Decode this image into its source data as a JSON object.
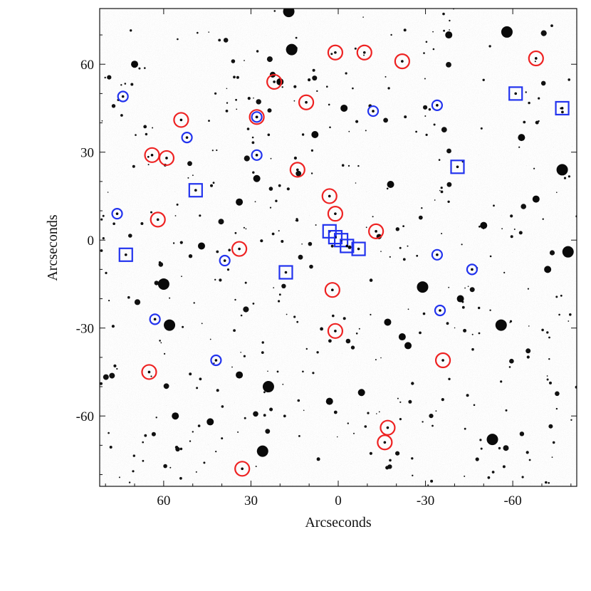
{
  "chart_data": {
    "type": "scatter",
    "title": "",
    "xlabel": "Arcseconds",
    "ylabel": "Arcseconds",
    "xlim": [
      82,
      -82
    ],
    "ylim": [
      -84,
      79
    ],
    "x_reversed": true,
    "x_ticks": [
      60,
      30,
      0,
      -30,
      -60
    ],
    "x_tick_labels": [
      "60",
      "30",
      "0",
      "-30",
      "-60"
    ],
    "y_ticks": [
      60,
      30,
      0,
      -30,
      -60
    ],
    "y_tick_labels": [
      "60",
      "30",
      "0",
      "-30",
      "-60"
    ],
    "background": "grayscale deep sky image with scattered stars and galaxies",
    "grid": false,
    "legend": "none",
    "series": [
      {
        "marker": "circle",
        "color": "#ee2222",
        "points": [
          [
            1,
            64
          ],
          [
            -9,
            64
          ],
          [
            -22,
            61
          ],
          [
            -68,
            62
          ],
          [
            22,
            54
          ],
          [
            11,
            47
          ],
          [
            54,
            41
          ],
          [
            28,
            42
          ],
          [
            64,
            29
          ],
          [
            59,
            28
          ],
          [
            14,
            24
          ],
          [
            3,
            15
          ],
          [
            1,
            9
          ],
          [
            62,
            7
          ],
          [
            -13,
            3
          ],
          [
            34,
            -3
          ],
          [
            2,
            -17
          ],
          [
            1,
            -31
          ],
          [
            -36,
            -41
          ],
          [
            65,
            -45
          ],
          [
            -17,
            -64
          ],
          [
            -16,
            -69
          ],
          [
            33,
            -78
          ]
        ]
      },
      {
        "marker": "circle",
        "color": "#2233ee",
        "points": [
          [
            74,
            49
          ],
          [
            -12,
            44
          ],
          [
            -34,
            46
          ],
          [
            52,
            35
          ],
          [
            28,
            42
          ],
          [
            28,
            29
          ],
          [
            76,
            9
          ],
          [
            39,
            -7
          ],
          [
            -34,
            -5
          ],
          [
            -46,
            -10
          ],
          [
            63,
            -27
          ],
          [
            -35,
            -24
          ],
          [
            42,
            -41
          ]
        ]
      },
      {
        "marker": "square",
        "color": "#2233ee",
        "points": [
          [
            -61,
            50
          ],
          [
            -77,
            45
          ],
          [
            -41,
            25
          ],
          [
            49,
            17
          ],
          [
            73,
            -5
          ],
          [
            18,
            -11
          ],
          [
            3,
            3
          ],
          [
            1,
            1
          ],
          [
            -1,
            0
          ],
          [
            -3,
            -2
          ],
          [
            -7,
            -3
          ]
        ]
      }
    ],
    "bright_sources": [
      [
        16,
        65
      ],
      [
        20,
        54
      ],
      [
        -38,
        70
      ],
      [
        -58,
        71
      ],
      [
        -2,
        45
      ],
      [
        -63,
        35
      ],
      [
        -77,
        24
      ],
      [
        28,
        21
      ],
      [
        -50,
        5
      ],
      [
        -79,
        -4
      ],
      [
        47,
        -2
      ],
      [
        -72,
        -10
      ],
      [
        24,
        -50
      ],
      [
        3,
        -55
      ],
      [
        34,
        -46
      ],
      [
        58,
        -29
      ],
      [
        56,
        -60
      ],
      [
        44,
        -62
      ],
      [
        26,
        -72
      ],
      [
        -17,
        -28
      ],
      [
        -22,
        -33
      ],
      [
        -56,
        -29
      ],
      [
        -68,
        14
      ],
      [
        -8,
        -52
      ],
      [
        17,
        78
      ],
      [
        -24,
        -36
      ],
      [
        34,
        13
      ],
      [
        60,
        -15
      ],
      [
        8,
        36
      ],
      [
        -42,
        -20
      ],
      [
        -29,
        -16
      ],
      [
        -18,
        19
      ],
      [
        70,
        60
      ],
      [
        -53,
        -68
      ]
    ]
  }
}
